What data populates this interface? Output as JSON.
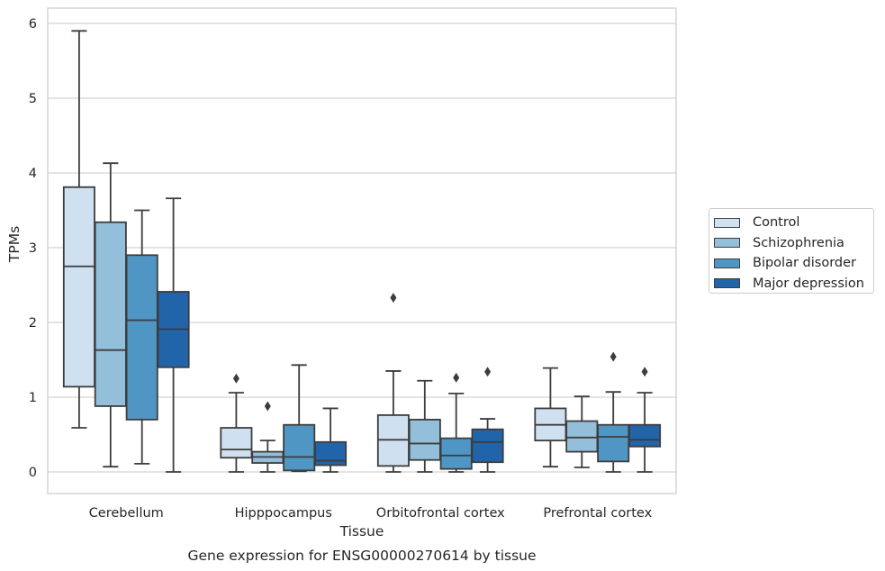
{
  "chart_data": {
    "type": "box",
    "title": "Gene expression for ENSG00000270614 by tissue",
    "xlabel": "Tissue",
    "ylabel": "TPMs",
    "ylim": [
      -0.28,
      6.2
    ],
    "yticks": [
      0,
      1,
      2,
      3,
      4,
      5,
      6
    ],
    "grid": "horizontal",
    "legend_position": "right",
    "categories": [
      "Cerebellum",
      "Hipppocampus",
      "Orbitofrontal cortex",
      "Prefrontal cortex"
    ],
    "series": [
      {
        "name": "Control",
        "color": "#cfe0f0",
        "boxes": [
          {
            "whisker_low": 0.59,
            "q1": 1.14,
            "median": 2.75,
            "q3": 3.81,
            "whisker_high": 5.9,
            "outliers": []
          },
          {
            "whisker_low": 0.0,
            "q1": 0.19,
            "median": 0.3,
            "q3": 0.59,
            "whisker_high": 1.06,
            "outliers": [
              1.25
            ]
          },
          {
            "whisker_low": 0.0,
            "q1": 0.08,
            "median": 0.43,
            "q3": 0.76,
            "whisker_high": 1.35,
            "outliers": [
              2.33
            ]
          },
          {
            "whisker_low": 0.07,
            "q1": 0.42,
            "median": 0.63,
            "q3": 0.85,
            "whisker_high": 1.39,
            "outliers": []
          }
        ]
      },
      {
        "name": "Schizophrenia",
        "color": "#93bfdb",
        "boxes": [
          {
            "whisker_low": 0.07,
            "q1": 0.88,
            "median": 1.63,
            "q3": 3.34,
            "whisker_high": 4.13,
            "outliers": []
          },
          {
            "whisker_low": 0.0,
            "q1": 0.12,
            "median": 0.2,
            "q3": 0.27,
            "whisker_high": 0.42,
            "outliers": [
              0.88
            ]
          },
          {
            "whisker_low": 0.0,
            "q1": 0.16,
            "median": 0.38,
            "q3": 0.7,
            "whisker_high": 1.22,
            "outliers": []
          },
          {
            "whisker_low": 0.06,
            "q1": 0.27,
            "median": 0.46,
            "q3": 0.68,
            "whisker_high": 1.01,
            "outliers": []
          }
        ]
      },
      {
        "name": "Bipolar disorder",
        "color": "#4f96c4",
        "boxes": [
          {
            "whisker_low": 0.11,
            "q1": 0.7,
            "median": 2.03,
            "q3": 2.9,
            "whisker_high": 3.5,
            "outliers": []
          },
          {
            "whisker_low": 0.01,
            "q1": 0.02,
            "median": 0.2,
            "q3": 0.63,
            "whisker_high": 1.43,
            "outliers": []
          },
          {
            "whisker_low": 0.0,
            "q1": 0.04,
            "median": 0.22,
            "q3": 0.45,
            "whisker_high": 1.05,
            "outliers": [
              1.26
            ]
          },
          {
            "whisker_low": 0.0,
            "q1": 0.14,
            "median": 0.47,
            "q3": 0.63,
            "whisker_high": 1.07,
            "outliers": [
              1.54
            ]
          }
        ]
      },
      {
        "name": "Major depression",
        "color": "#2264aa",
        "boxes": [
          {
            "whisker_low": 0.0,
            "q1": 1.4,
            "median": 1.91,
            "q3": 2.41,
            "whisker_high": 3.66,
            "outliers": []
          },
          {
            "whisker_low": 0.0,
            "q1": 0.09,
            "median": 0.15,
            "q3": 0.4,
            "whisker_high": 0.85,
            "outliers": []
          },
          {
            "whisker_low": 0.0,
            "q1": 0.13,
            "median": 0.4,
            "q3": 0.57,
            "whisker_high": 0.71,
            "outliers": [
              1.34
            ]
          },
          {
            "whisker_low": 0.0,
            "q1": 0.34,
            "median": 0.43,
            "q3": 0.63,
            "whisker_high": 1.06,
            "outliers": [
              1.34
            ]
          }
        ]
      }
    ]
  }
}
